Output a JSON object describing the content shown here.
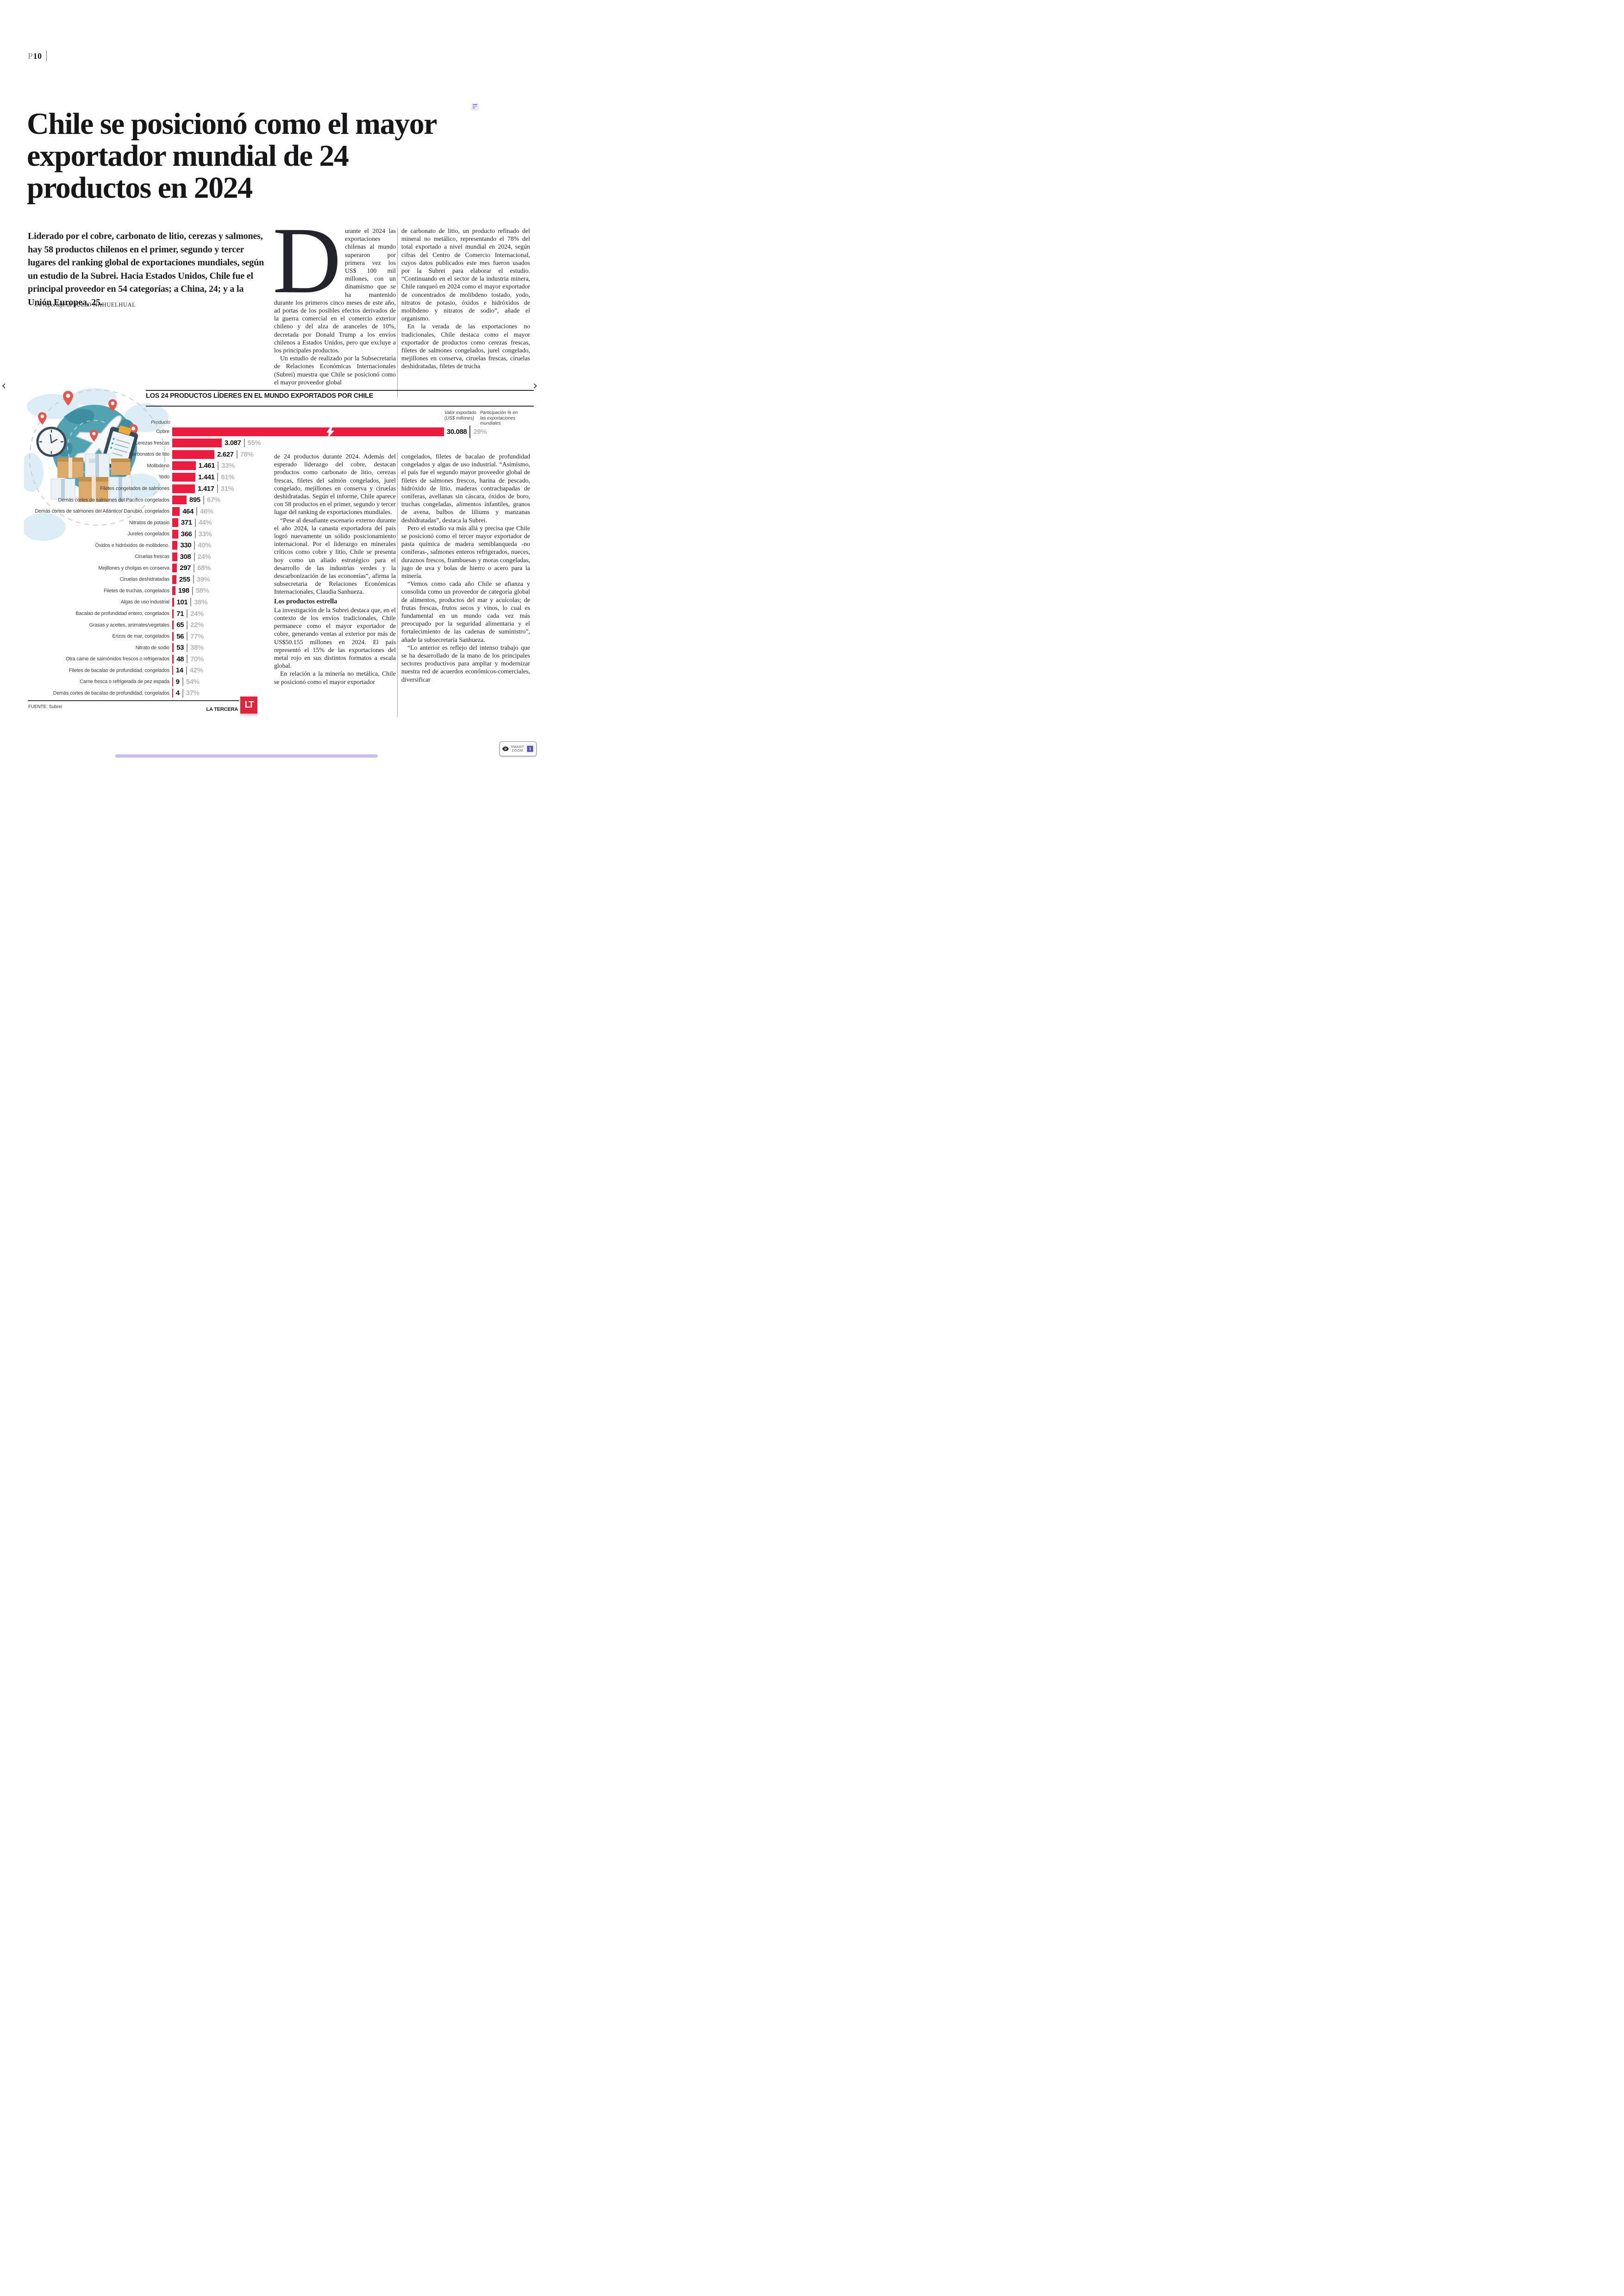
{
  "page": {
    "label_prefix": "P",
    "label_number": "10"
  },
  "nav": {
    "prev_icon": "‹",
    "next_icon": "›"
  },
  "article": {
    "headline": "Chile se posicionó como el mayor exportador mundial de 24 productos en 2024",
    "lead": "Liderado por el cobre, carbonato de litio, cerezas y salmones, hay 58 productos chilenos en el primer, segundo y tercer lugares del ranking global de exportaciones mundiales, según un estudio de la Subrei. Hacia Estados Unidos, Chile fue el principal proveedor en 54 categorías; a China, 24; y a la Unión Europea, 25.",
    "byline_prefix": "Un reportaje de",
    "byline_author": "JULIO NAHUELHUAL",
    "dropcap": "D",
    "col1_top_p1": "urante el 2024 las exportaciones chilenas al mundo superaron por primera vez los US$ 100 mil millones, con un dinamismo que se ha mantenido durante los primeros cinco meses de este año, ad portas de los posibles efectos derivados de la guerra comercial en el comercio exterior chileno y del alza de aranceles de 10%, decretada por Donald Trump a los envíos chilenos a Estados Unidos, pero que excluye a los principales productos.",
    "col1_top_p2": "Un estudio de realizado por la Subsecretaría de Relaciones Económicas Internacionales (Subrei) muestra que Chile se posicionó como el mayor proveedor global",
    "col2_top_p1": "de carbonato de litio, un producto refinado del mineral no metálico, representando el 78% del total exportado a nivel mundial en 2024, según cifras del Centro de Comercio Internacional, cuyos datos publicados este mes fueron usados por la Subrei para elaborar el estudio. “Continuando en el sector de la industria minera, Chile ranqueó en 2024 como el mayor exportador de concentrados de molibdeno tostado, yodo, nitratos de potasio, óxidos e hidróxidos de molibdeno y nitratos de sodio”, añade el organismo.",
    "col2_top_p2": "En la verada de las exportaciones no tradicionales, Chile destaca como el mayor exportador de productos como cerezas frescas, filetes de salmones congelados, jurel congelado, mejillones en conserva, ciruelas frescas, ciruelas deshidratadas, filetes de trucha",
    "col1_bottom_p1": "de 24 productos durante 2024. Además del esperado liderazgo del cobre, destacan productos como carbonato de litio, cerezas frescas, filetes del salmón congelados, jurel congelado, mejillones en conserva y ciruelas deshidratadas. Según el informe, Chile aparece con 58 productos en el primer, segundo y tercer lugar del ranking de exportaciones mundiales.",
    "col1_bottom_p2": "“Pese al desafiante escenario externo durante el año 2024, la canasta exportadora del país logró nuevamente un sólido posicionamiento internacional. Por el liderazgo en minerales críticos como cobre y litio, Chile se presenta hoy como un aliado estratégico para el desarrollo de las industrias verdes y la descarbonización de las economías”, afirma la subsecretaria de Relaciones Económicas Internacionales, Claudia Sanhueza.",
    "col1_bottom_subhead": "Los productos estrella",
    "col1_bottom_p3": "La investigación de la Subrei destaca que, en el contexto de los envíos tradicionales, Chile permanece como el mayor exportador de cobre, generando ventas al exterior por más de US$50.155 millones en 2024. El país representó el 15% de las exportaciones del metal rojo en sus distintos formatos a escala global.",
    "col1_bottom_p4": "En relación a la minería no metálica, Chile se posicionó como el mayor exportador",
    "col2_bottom_p1": "congelados, filetes de bacalao de profundidad congelados y algas de uso industrial. “Asimismo, el país fue el segundo mayor proveedor global de filetes de salmones frescos, harina de pescado, hidróxido de litio, maderas contrachapadas de coníferas, avellanas sin cáscara, óxidos de boro, truchas congeladas, alimentos infantiles, granos de avena, bulbos de liliums y manzanas deshidratadas”, destaca la Subrei.",
    "col2_bottom_p2": "Pero el estudio va más allá y precisa que Chile se posicionó como el tercer mayor exportador de pasta química de madera semiblanqueda -no coníferas-, salmones enteros refrigerados, nueces, duraznos frescos, frambuesas y moras congeladas, jugo de uva y bolas de hierro o acero para la minería.",
    "col2_bottom_p3": "“Vemos como cada año Chile se afianza y consolida como un proveedor de categoría global de alimentos, productos del mar y acuícolas; de frutas frescas, frutos secos y vinos, lo cual es fundamental en un mundo cada vez más preocupado por la seguridad alimentaria y el fortalecimiento de las cadenas de suministro”, añade la subsecretaria Sanhueza.",
    "col2_bottom_p4": "“Lo anterior es reflejo del intenso trabajo que se ha desarrollado de la mano de los principales sectores productivos para ampliar y modernizar nuestra red de acuerdos económicos-comerciales, diversificar"
  },
  "chart": {
    "title": "LOS 24 PRODUCTOS LÍDERES EN EL MUNDO EXPORTADOS POR CHILE",
    "product_col_label": "Producto",
    "value_header": "Valor exportado\n(US$ millones)",
    "share_header": "Participación % en\nlas exportaciones\nmundiales"
  },
  "chart_data": {
    "type": "bar",
    "title": "LOS 24 PRODUCTOS LÍDERES EN EL MUNDO EXPORTADOS POR CHILE",
    "value_unit": "US$ millones",
    "value_axis_label": "Valor exportado (US$ millones)",
    "share_axis_label": "Participación % en las exportaciones mundiales",
    "source": "Subrei",
    "bar_color": "#ec1c41",
    "axis_break_on_first_bar": true,
    "categories": [
      "Cobre",
      "Cerezas frescas",
      "Carbonatos de litio",
      "Molibdeno",
      "Yodo",
      "Filetes congelados de salmones",
      "Demás cortes de salmones del Pacífico congelados",
      "Demás cortes de salmones del Atlántico/ Danubio, congelados",
      "Nitratos de potasio",
      "Jureles congelados",
      "Óxidos e hidróxidos de molibdeno.",
      "Ciruelas frescas",
      "Mejillones y cholgas en conserva",
      "Ciruelas deshidratadas",
      "Filetes de truchas, congelados",
      "Algas de uso industrial",
      "Bacalao de profundidad entero, congelados",
      "Grasas y aceites, animales/vegetales",
      "Erizos de mar, congelados",
      "Nitrato de sodio",
      "Otra carne de salmónidos frescos o refrigerados",
      "Filetes de bacalao de profundidad, congelados",
      "Carne fresca o refrigerada de pez espada",
      "Demás cortes de bacalao de profundidad, congelados"
    ],
    "values": [
      30088,
      3087,
      2627,
      1461,
      1441,
      1417,
      895,
      464,
      371,
      366,
      330,
      308,
      297,
      255,
      198,
      101,
      71,
      65,
      56,
      53,
      48,
      14,
      9,
      4
    ],
    "value_labels": [
      "30.088",
      "3.087",
      "2.627",
      "1.461",
      "1.441",
      "1.417",
      "895",
      "464",
      "371",
      "366",
      "330",
      "308",
      "297",
      "255",
      "198",
      "101",
      "71",
      "65",
      "56",
      "53",
      "48",
      "14",
      "9",
      "4"
    ],
    "share_pct": [
      29,
      55,
      78,
      33,
      61,
      31,
      67,
      46,
      44,
      33,
      40,
      24,
      68,
      39,
      58,
      38,
      24,
      22,
      77,
      38,
      70,
      42,
      54,
      37
    ]
  },
  "footer": {
    "source": "FUENTE: Subrei",
    "credit": "LA TERCERA",
    "logo_text": "LT"
  },
  "overlay": {
    "smart_zoom_label": "SMART\nZOOM",
    "badge_count": "1"
  },
  "colors": {
    "bar_red": "#ec1c41",
    "share_gray": "#b5b5b5",
    "lt_red": "#e0243a",
    "badge_purple": "#4f52b5",
    "scrollbar_lavender": "#c9bcee",
    "pin_red": "#e4574e",
    "globe_teal": "#52a3b2"
  }
}
